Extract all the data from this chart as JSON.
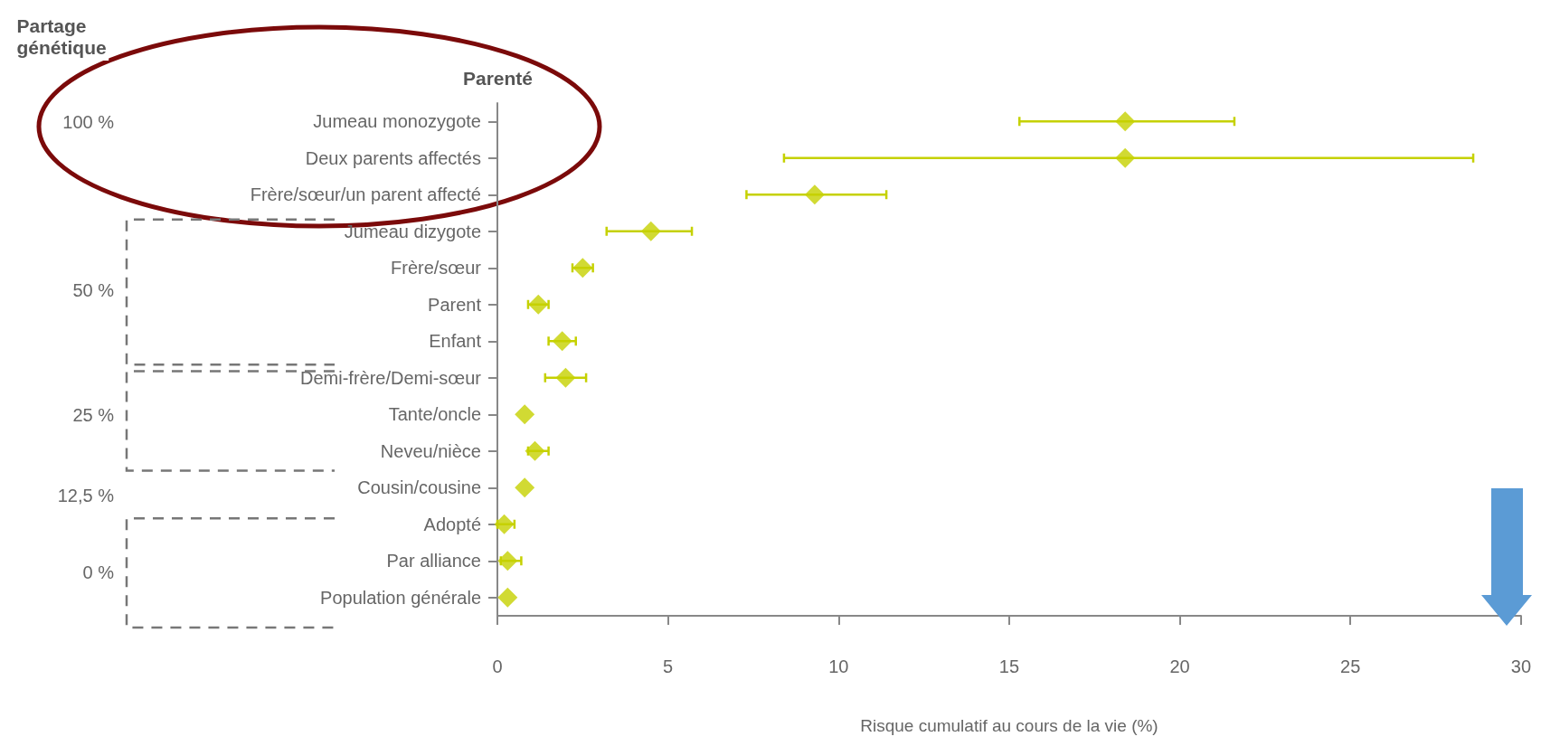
{
  "chart_data": {
    "type": "scatter",
    "xlabel": "Risque cumulatif au cours de la vie (%)",
    "ylabel": "Parenté",
    "categories": [
      "Jumeau monozygote",
      "Deux parents affectés",
      "Frère/sœur/un parent affecté",
      "Jumeau dizygote",
      "Frère/sœur",
      "Parent",
      "Enfant",
      "Demi-frère/Demi-sœur",
      "Tante/oncle",
      "Neveu/nièce",
      "Cousin/cousine",
      "Adopté",
      "Par alliance",
      "Population générale"
    ],
    "orientation": "horizontal",
    "series": [
      {
        "color": "#c5d100",
        "values": [
          18.4,
          18.4,
          9.3,
          4.5,
          2.5,
          1.2,
          1.9,
          2.0,
          0.8,
          1.1,
          0.8,
          0.2,
          0.3,
          0.3
        ],
        "errors": [
          [
            15.3,
            21.6
          ],
          [
            8.4,
            28.6
          ],
          [
            7.3,
            11.4
          ],
          [
            3.2,
            5.7
          ],
          [
            2.2,
            2.8
          ],
          [
            0.9,
            1.5
          ],
          [
            1.5,
            2.3
          ],
          [
            1.4,
            2.6
          ],
          null,
          [
            0.9,
            1.5
          ],
          null,
          [
            0.0,
            0.5
          ],
          [
            0.1,
            0.7
          ],
          null
        ]
      }
    ],
    "xlim": [
      0,
      30
    ],
    "xticks": [
      0,
      5,
      10,
      15,
      20,
      25,
      30
    ],
    "marker": "diamond",
    "grid": false,
    "annotations": [
      "Partage génétique",
      "100 %",
      "50 %",
      "25 %",
      "12,5 %",
      "0 %"
    ]
  }
}
